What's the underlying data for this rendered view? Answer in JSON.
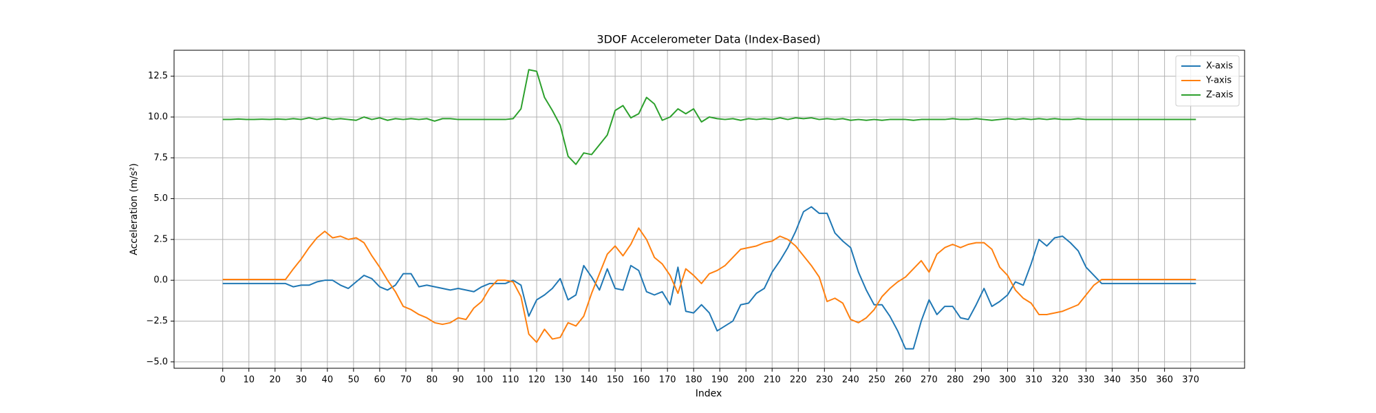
{
  "chart_data": {
    "type": "line",
    "title": "3DOF Accelerometer Data (Index-Based)",
    "x_label": "Index",
    "y_label": "Acceleration (m/s²)",
    "x": [
      0,
      3,
      6,
      9,
      12,
      15,
      18,
      21,
      24,
      27,
      30,
      33,
      36,
      39,
      42,
      45,
      48,
      51,
      54,
      57,
      60,
      63,
      66,
      69,
      72,
      75,
      78,
      81,
      84,
      87,
      90,
      93,
      96,
      99,
      102,
      105,
      108,
      111,
      114,
      117,
      120,
      123,
      126,
      129,
      132,
      135,
      138,
      141,
      144,
      147,
      150,
      153,
      156,
      159,
      162,
      165,
      168,
      171,
      174,
      177,
      180,
      183,
      186,
      189,
      192,
      195,
      198,
      201,
      204,
      207,
      210,
      213,
      216,
      219,
      222,
      225,
      228,
      231,
      234,
      237,
      240,
      243,
      246,
      249,
      252,
      255,
      258,
      261,
      264,
      267,
      270,
      273,
      276,
      279,
      282,
      285,
      288,
      291,
      294,
      297,
      300,
      303,
      306,
      309,
      312,
      315,
      318,
      321,
      324,
      327,
      330,
      333,
      336,
      339,
      342,
      345,
      348,
      351,
      354,
      357,
      360,
      363,
      366,
      369,
      372
    ],
    "series": [
      {
        "name": "X-axis",
        "color": "#1f77b4",
        "values": [
          -0.2,
          -0.2,
          -0.2,
          -0.2,
          -0.2,
          -0.2,
          -0.2,
          -0.2,
          -0.2,
          -0.4,
          -0.3,
          -0.3,
          -0.1,
          0.0,
          0.0,
          -0.3,
          -0.5,
          -0.1,
          0.3,
          0.1,
          -0.4,
          -0.6,
          -0.3,
          0.4,
          0.4,
          -0.4,
          -0.3,
          -0.4,
          -0.5,
          -0.6,
          -0.5,
          -0.6,
          -0.7,
          -0.4,
          -0.2,
          -0.2,
          -0.2,
          0.0,
          -0.3,
          -2.2,
          -1.2,
          -0.9,
          -0.5,
          0.1,
          -1.2,
          -0.9,
          0.9,
          0.2,
          -0.6,
          0.7,
          -0.5,
          -0.6,
          0.9,
          0.6,
          -0.7,
          -0.9,
          -0.7,
          -1.5,
          0.8,
          -1.9,
          -2.0,
          -1.5,
          -2.0,
          -3.1,
          -2.8,
          -2.5,
          -1.5,
          -1.4,
          -0.8,
          -0.5,
          0.5,
          1.2,
          2.0,
          3.0,
          4.2,
          4.5,
          4.1,
          4.1,
          2.9,
          2.4,
          2.0,
          0.5,
          -0.6,
          -1.5,
          -1.5,
          -2.2,
          -3.1,
          -4.2,
          -4.2,
          -2.5,
          -1.2,
          -2.1,
          -1.6,
          -1.6,
          -2.3,
          -2.4,
          -1.5,
          -0.5,
          -1.6,
          -1.3,
          -0.9,
          -0.1,
          -0.3,
          1.0,
          2.5,
          2.1,
          2.6,
          2.7,
          2.3,
          1.8,
          0.8,
          0.3,
          -0.2,
          -0.2,
          -0.2,
          -0.2,
          -0.2,
          -0.2,
          -0.2,
          -0.2,
          -0.2,
          -0.2,
          -0.2,
          -0.2,
          -0.2
        ]
      },
      {
        "name": "Y-axis",
        "color": "#ff7f0e",
        "values": [
          0.05,
          0.05,
          0.05,
          0.05,
          0.05,
          0.05,
          0.05,
          0.05,
          0.05,
          0.7,
          1.3,
          2.0,
          2.6,
          3.0,
          2.6,
          2.7,
          2.5,
          2.6,
          2.3,
          1.5,
          0.8,
          0.0,
          -0.7,
          -1.6,
          -1.8,
          -2.1,
          -2.3,
          -2.6,
          -2.7,
          -2.6,
          -2.3,
          -2.4,
          -1.7,
          -1.3,
          -0.5,
          0.0,
          0.0,
          -0.1,
          -1.0,
          -3.3,
          -3.8,
          -3.0,
          -3.6,
          -3.5,
          -2.6,
          -2.8,
          -2.2,
          -0.8,
          0.4,
          1.6,
          2.1,
          1.5,
          2.2,
          3.2,
          2.5,
          1.4,
          1.0,
          0.3,
          -0.8,
          0.7,
          0.3,
          -0.2,
          0.4,
          0.6,
          0.9,
          1.4,
          1.9,
          2.0,
          2.1,
          2.3,
          2.4,
          2.7,
          2.5,
          2.1,
          1.5,
          0.9,
          0.2,
          -1.3,
          -1.1,
          -1.4,
          -2.4,
          -2.6,
          -2.3,
          -1.8,
          -1.0,
          -0.5,
          -0.1,
          0.2,
          0.7,
          1.2,
          0.5,
          1.6,
          2.0,
          2.2,
          2.0,
          2.2,
          2.3,
          2.3,
          1.9,
          0.8,
          0.3,
          -0.6,
          -1.1,
          -1.4,
          -2.1,
          -2.1,
          -2.0,
          -1.9,
          -1.7,
          -1.5,
          -0.9,
          -0.3,
          0.05,
          0.05,
          0.05,
          0.05,
          0.05,
          0.05,
          0.05,
          0.05,
          0.05,
          0.05,
          0.05,
          0.05,
          0.05
        ]
      },
      {
        "name": "Z-axis",
        "color": "#2ca02c",
        "values": [
          9.85,
          9.85,
          9.88,
          9.85,
          9.85,
          9.87,
          9.85,
          9.88,
          9.85,
          9.9,
          9.85,
          9.95,
          9.85,
          9.95,
          9.85,
          9.9,
          9.85,
          9.8,
          10.0,
          9.85,
          9.95,
          9.8,
          9.9,
          9.85,
          9.9,
          9.85,
          9.9,
          9.75,
          9.9,
          9.9,
          9.85,
          9.85,
          9.85,
          9.85,
          9.85,
          9.85,
          9.85,
          9.9,
          10.5,
          12.9,
          12.8,
          11.2,
          10.4,
          9.5,
          7.6,
          7.1,
          7.8,
          7.7,
          8.3,
          8.9,
          10.4,
          10.7,
          9.95,
          10.2,
          11.2,
          10.8,
          9.8,
          10.0,
          10.5,
          10.2,
          10.5,
          9.7,
          10.0,
          9.9,
          9.85,
          9.9,
          9.8,
          9.9,
          9.85,
          9.9,
          9.85,
          9.95,
          9.85,
          9.95,
          9.9,
          9.95,
          9.85,
          9.9,
          9.85,
          9.9,
          9.8,
          9.85,
          9.8,
          9.85,
          9.8,
          9.85,
          9.85,
          9.85,
          9.8,
          9.85,
          9.85,
          9.85,
          9.85,
          9.9,
          9.85,
          9.85,
          9.9,
          9.85,
          9.8,
          9.85,
          9.9,
          9.85,
          9.9,
          9.85,
          9.9,
          9.85,
          9.9,
          9.85,
          9.85,
          9.9,
          9.85,
          9.85,
          9.85,
          9.85,
          9.85,
          9.85,
          9.85,
          9.85,
          9.85,
          9.85,
          9.85,
          9.85,
          9.85,
          9.85,
          9.85
        ]
      }
    ],
    "xlim": [
      -18.6,
      390.6
    ],
    "ylim": [
      -5.39,
      14.09
    ],
    "xticks": [
      0,
      10,
      20,
      30,
      40,
      50,
      60,
      70,
      80,
      90,
      100,
      110,
      120,
      130,
      140,
      150,
      160,
      170,
      180,
      190,
      200,
      210,
      220,
      230,
      240,
      250,
      260,
      270,
      280,
      290,
      300,
      310,
      320,
      330,
      340,
      350,
      360,
      370
    ],
    "yticks": [
      {
        "value": -5,
        "label": "−5.0"
      },
      {
        "value": -2.5,
        "label": "−2.5"
      },
      {
        "value": 0,
        "label": "0.0"
      },
      {
        "value": 2.5,
        "label": "2.5"
      },
      {
        "value": 5,
        "label": "5.0"
      },
      {
        "value": 7.5,
        "label": "7.5"
      },
      {
        "value": 10,
        "label": "10.0"
      },
      {
        "value": 12.5,
        "label": "12.5"
      }
    ],
    "grid": true,
    "legend": "upper right"
  }
}
